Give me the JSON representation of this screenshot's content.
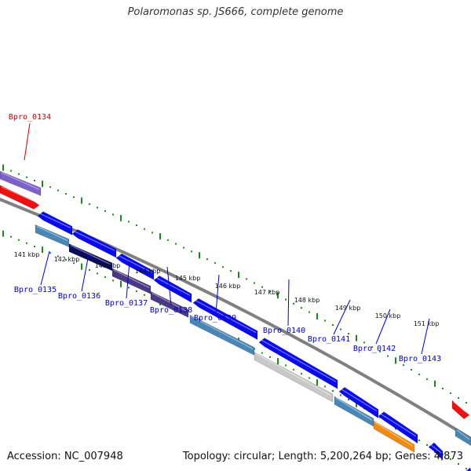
{
  "title": "Polaromonas sp. JS666, complete genome",
  "footer": {
    "accession": "Accession: NC_007948",
    "topology": "Topology: circular; Length: 5,200,264 bp; Genes: 4,873"
  },
  "colors": {
    "background": "#ffffff",
    "backbone": "#808080",
    "tick": "#1a8a1a",
    "label_blue": "#0000cc",
    "label_red": "#cc0000",
    "blue": "#0a0af0",
    "steel": "#4a86b5",
    "navy": "#0b0b5e",
    "purple": "#4a3a86",
    "lavender": "#7a62c8",
    "grey": "#c8c8c8",
    "orange": "#f08a10",
    "red": "#f01010"
  },
  "kbp_ticks": [
    "141 kbp",
    "142 kbp",
    "143 kbp",
    "144 kbp",
    "145 kbp",
    "146 kbp",
    "147 kbp",
    "148 kbp",
    "149 kbp",
    "150 kbp",
    "151 kbp"
  ],
  "gene_labels": [
    {
      "name": "Bpro_0134",
      "color": "red"
    },
    {
      "name": "Bpro_0135",
      "color": "blue"
    },
    {
      "name": "Bpro_0136",
      "color": "blue"
    },
    {
      "name": "Bpro_0137",
      "color": "blue"
    },
    {
      "name": "Bpro_0138",
      "color": "blue"
    },
    {
      "name": "Bpro_0139",
      "color": "blue"
    },
    {
      "name": "Bpro_0140",
      "color": "blue"
    },
    {
      "name": "Bpro_0141",
      "color": "blue"
    },
    {
      "name": "Bpro_0142",
      "color": "blue"
    },
    {
      "name": "Bpro_0143",
      "color": "blue"
    }
  ],
  "genes": [
    {
      "track": "upper-outer",
      "dir": "none",
      "color": "lavender"
    },
    {
      "track": "upper-inner",
      "dir": "right",
      "color": "red"
    },
    {
      "track": "inner-1",
      "dir": "left",
      "color": "blue"
    },
    {
      "track": "inner-2",
      "dir": "none",
      "color": "steel"
    },
    {
      "track": "inner-1",
      "dir": "left",
      "color": "blue"
    },
    {
      "track": "inner-2",
      "dir": "none",
      "color": "navy"
    },
    {
      "track": "inner-1",
      "dir": "left",
      "color": "blue"
    },
    {
      "track": "inner-2",
      "dir": "none",
      "color": "purple"
    },
    {
      "track": "inner-1",
      "dir": "left",
      "color": "blue"
    },
    {
      "track": "inner-2",
      "dir": "none",
      "color": "purple"
    },
    {
      "track": "inner-1",
      "dir": "left",
      "color": "blue"
    },
    {
      "track": "inner-2",
      "dir": "none",
      "color": "steel"
    },
    {
      "track": "inner-1",
      "dir": "left",
      "color": "blue"
    },
    {
      "track": "inner-2",
      "dir": "none",
      "color": "grey"
    },
    {
      "track": "inner-1",
      "dir": "left",
      "color": "blue"
    },
    {
      "track": "inner-2",
      "dir": "none",
      "color": "steel"
    },
    {
      "track": "inner-1",
      "dir": "left",
      "color": "blue"
    },
    {
      "track": "inner-2",
      "dir": "none",
      "color": "orange"
    },
    {
      "track": "inner-1",
      "dir": "left",
      "color": "blue"
    },
    {
      "track": "upper-inner",
      "dir": "right",
      "color": "red"
    },
    {
      "track": "inner-2",
      "dir": "none",
      "color": "steel"
    },
    {
      "track": "inner-1",
      "dir": "left",
      "color": "blue"
    },
    {
      "track": "inner-2",
      "dir": "none",
      "color": "steel"
    }
  ]
}
